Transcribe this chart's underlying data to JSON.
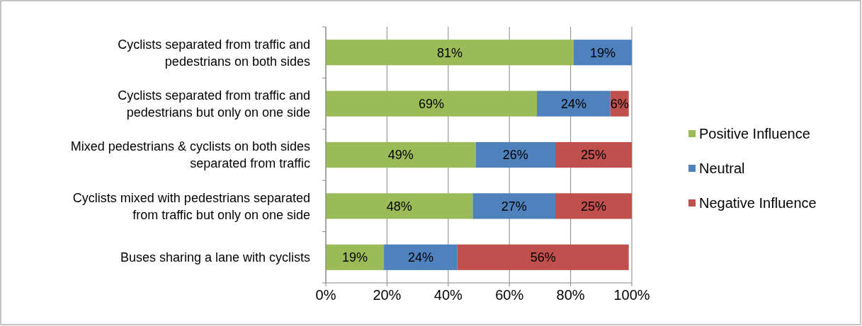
{
  "chart_data": {
    "type": "bar",
    "orientation": "horizontal",
    "stacked": true,
    "categories": [
      "Cyclists separated from traffic and pedestrians on both sides",
      "Cyclists separated from traffic and pedestrians but only on one side",
      "Mixed pedestrians & cyclists on both sides separated from traffic",
      "Cyclists mixed with pedestrians separated from traffic but only on one side",
      "Buses sharing a lane with cyclists"
    ],
    "series": [
      {
        "name": "Positive Influence",
        "color": "#9bbb59",
        "values": [
          81,
          69,
          49,
          48,
          19
        ],
        "value_labels": [
          "81%",
          "69%",
          "49%",
          "48%",
          "19%"
        ]
      },
      {
        "name": "Neutral",
        "color": "#4f81bd",
        "values": [
          19,
          24,
          26,
          27,
          24
        ],
        "value_labels": [
          "19%",
          "24%",
          "26%",
          "27%",
          "24%"
        ]
      },
      {
        "name": "Negative Influence",
        "color": "#c0504d",
        "values": [
          null,
          6,
          25,
          25,
          56
        ],
        "value_labels": [
          null,
          "6%",
          "25%",
          "25%",
          "56%"
        ]
      }
    ],
    "xlim": [
      0,
      100
    ],
    "xticks": [
      {
        "value": 0,
        "label": "0%"
      },
      {
        "value": 20,
        "label": "20%"
      },
      {
        "value": 40,
        "label": "40%"
      },
      {
        "value": 60,
        "label": "60%"
      },
      {
        "value": 80,
        "label": "80%"
      },
      {
        "value": 100,
        "label": "100%"
      }
    ],
    "grid": "x",
    "legend": "right"
  }
}
